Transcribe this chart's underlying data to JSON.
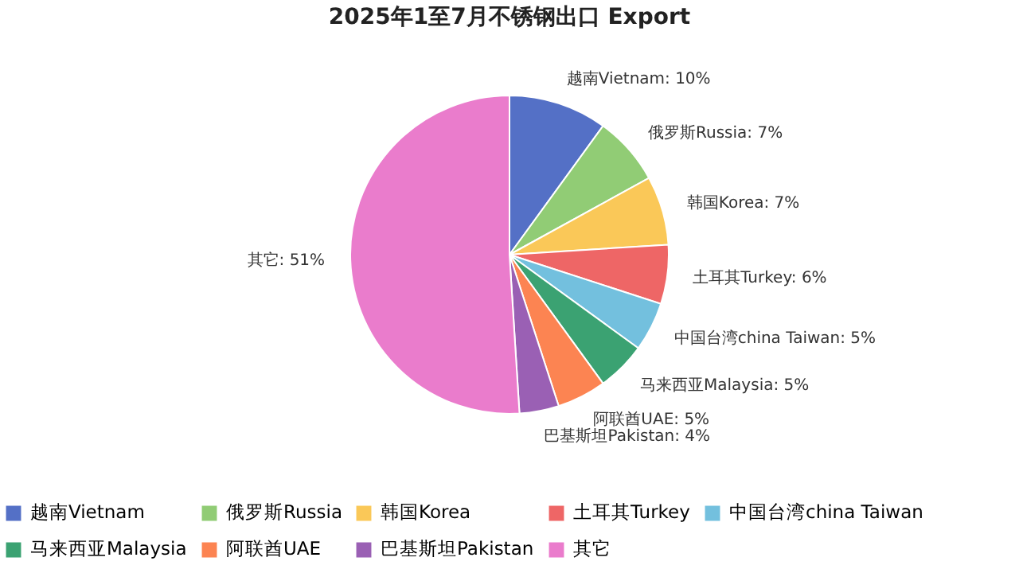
{
  "chart_data": {
    "type": "pie",
    "title": "2025年1至7月不锈钢出口 Export",
    "categories": [
      "越南Vietnam",
      "俄罗斯Russia",
      "韩国Korea",
      "土耳其Turkey",
      "中国台湾china Taiwan",
      "马来西亚Malaysia",
      "阿联酋UAE",
      "巴基斯坦Pakistan",
      "其它"
    ],
    "values": [
      10,
      7,
      7,
      6,
      5,
      5,
      5,
      4,
      51
    ],
    "colors": [
      "#5470c6",
      "#91cc75",
      "#fac858",
      "#ee6666",
      "#73c0de",
      "#3ba272",
      "#fc8452",
      "#9a60b4",
      "#ea7ccc"
    ],
    "value_labels": [
      "越南Vietnam: 10%",
      "俄罗斯Russia: 7%",
      "韩国Korea: 7%",
      "土耳其Turkey: 6%",
      "中国台湾china Taiwan: 5%",
      "马来西亚Malaysia: 5%",
      "阿联酋UAE: 5%",
      "巴基斯坦Pakistan: 4%",
      "其它: 51%"
    ],
    "legend": "bottom"
  }
}
